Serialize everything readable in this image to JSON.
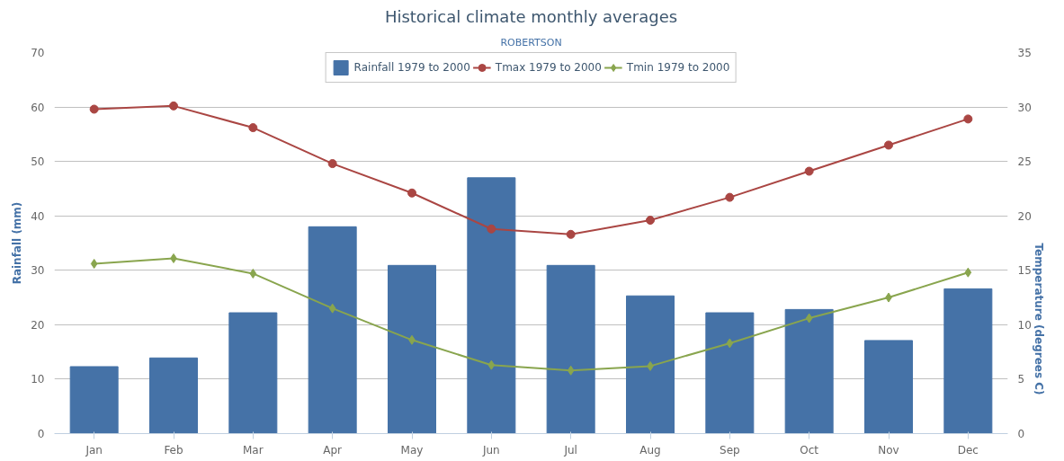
{
  "chart_data": {
    "type": "bar",
    "title": "Historical climate monthly averages",
    "subtitle": "ROBERTSON",
    "ylabel": "Rainfall (mm)",
    "y2label": "Temperature (degrees C)",
    "categories": [
      "Jan",
      "Feb",
      "Mar",
      "Apr",
      "May",
      "Jun",
      "Jul",
      "Aug",
      "Sep",
      "Oct",
      "Nov",
      "Dec"
    ],
    "series": [
      {
        "name": "Rainfall 1979 to 2000",
        "color": "#4572a7",
        "values": [
          12.3,
          13.9,
          22.2,
          38.0,
          30.9,
          47.0,
          30.9,
          25.3,
          22.2,
          22.8,
          17.1,
          26.6
        ]
      },
      {
        "name": "Tmax 1979 to 2000",
        "type": "line",
        "axis": "y2",
        "marker": "circle",
        "color": "#aa4643",
        "values": [
          29.8,
          30.1,
          28.1,
          24.8,
          22.1,
          18.8,
          18.3,
          19.6,
          21.7,
          24.1,
          26.5,
          28.9
        ]
      },
      {
        "name": "Tmin 1979 to 2000",
        "type": "line",
        "axis": "y2",
        "marker": "diamond",
        "color": "#89a54e",
        "values": [
          15.6,
          16.1,
          14.7,
          11.5,
          8.6,
          6.3,
          5.8,
          6.2,
          8.3,
          10.6,
          12.5,
          14.8
        ]
      }
    ],
    "ylim": [
      0,
      70
    ],
    "yticks": [
      0,
      10,
      20,
      30,
      40,
      50,
      60,
      70
    ],
    "y2lim": [
      0,
      35
    ],
    "y2ticks": [
      0,
      5,
      10,
      15,
      20,
      25,
      30,
      35
    ],
    "grid": "y",
    "legend": "top"
  }
}
